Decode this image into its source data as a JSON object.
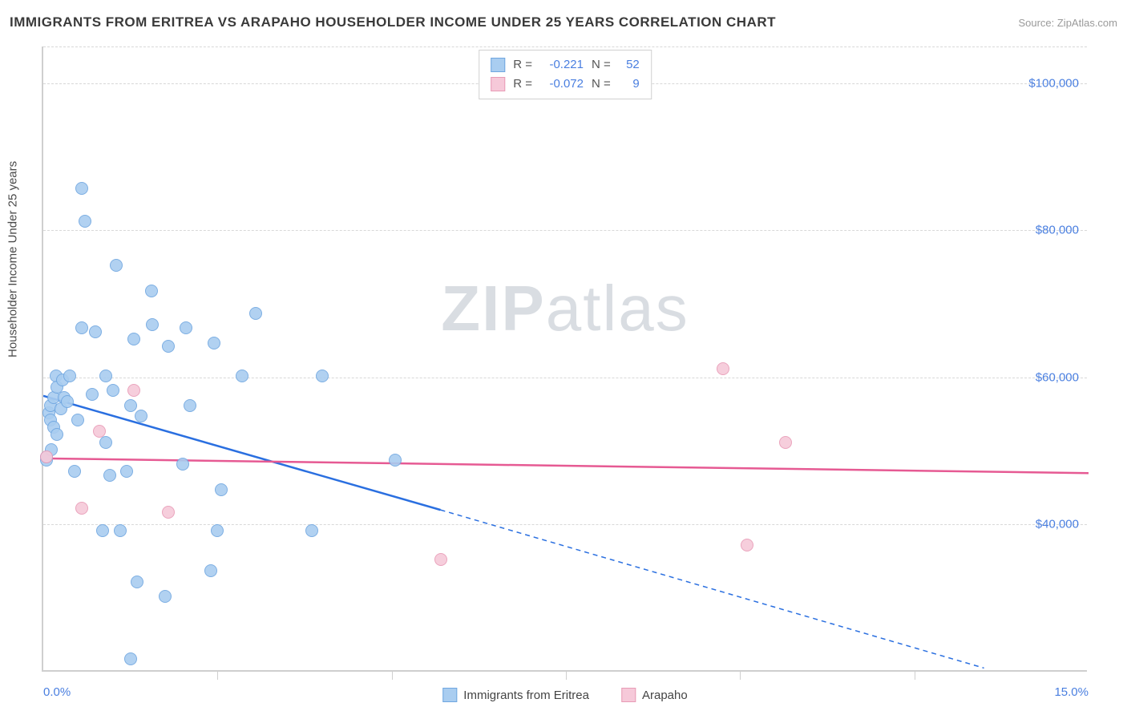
{
  "title": "IMMIGRANTS FROM ERITREA VS ARAPAHO HOUSEHOLDER INCOME UNDER 25 YEARS CORRELATION CHART",
  "source_label": "Source: ",
  "source_name": "ZipAtlas.com",
  "watermark_a": "ZIP",
  "watermark_b": "atlas",
  "y_axis_label": "Householder Income Under 25 years",
  "chart": {
    "type": "scatter",
    "background_color": "#ffffff",
    "grid_color": "#d8d8d8",
    "axis_color": "#cfcfcf",
    "tick_label_color": "#4a7fe0",
    "x": {
      "min": 0.0,
      "max": 15.0,
      "ticks": [
        0.0,
        15.0
      ],
      "tick_labels": [
        "0.0%",
        "15.0%"
      ],
      "minor_ticks": [
        2.5,
        5.0,
        7.5,
        10.0,
        12.5
      ]
    },
    "y": {
      "min": 20000,
      "max": 105000,
      "ticks": [
        40000,
        60000,
        80000,
        100000
      ],
      "tick_labels": [
        "$40,000",
        "$60,000",
        "$80,000",
        "$100,000"
      ]
    },
    "marker_radius": 8,
    "marker_stroke_width": 1.5,
    "marker_fill_opacity": 0.28
  },
  "series": [
    {
      "key": "eritrea",
      "label": "Immigrants from Eritrea",
      "color_stroke": "#6fa6e0",
      "color_fill": "#a9cdf0",
      "R_label": "R =",
      "R_value": "-0.221",
      "N_label": "N =",
      "N_value": "52",
      "trend": {
        "color": "#2a6fe0",
        "width": 2.5,
        "x1": 0.0,
        "y1": 57500,
        "x2": 5.7,
        "y2": 42000,
        "dash_to_x": 13.5,
        "dash_to_y": 20500
      },
      "points": [
        {
          "x": 0.05,
          "y": 48500
        },
        {
          "x": 0.05,
          "y": 49000
        },
        {
          "x": 0.08,
          "y": 55000
        },
        {
          "x": 0.1,
          "y": 54000
        },
        {
          "x": 0.1,
          "y": 56000
        },
        {
          "x": 0.12,
          "y": 50000
        },
        {
          "x": 0.15,
          "y": 53000
        },
        {
          "x": 0.15,
          "y": 57000
        },
        {
          "x": 0.18,
          "y": 60000
        },
        {
          "x": 0.2,
          "y": 52000
        },
        {
          "x": 0.2,
          "y": 58500
        },
        {
          "x": 0.25,
          "y": 55500
        },
        {
          "x": 0.28,
          "y": 59500
        },
        {
          "x": 0.3,
          "y": 57000
        },
        {
          "x": 0.35,
          "y": 56500
        },
        {
          "x": 0.38,
          "y": 60000
        },
        {
          "x": 0.45,
          "y": 47000
        },
        {
          "x": 0.5,
          "y": 54000
        },
        {
          "x": 0.55,
          "y": 66500
        },
        {
          "x": 0.55,
          "y": 85500
        },
        {
          "x": 0.6,
          "y": 81000
        },
        {
          "x": 0.7,
          "y": 57500
        },
        {
          "x": 0.75,
          "y": 66000
        },
        {
          "x": 0.85,
          "y": 39000
        },
        {
          "x": 0.9,
          "y": 51000
        },
        {
          "x": 0.9,
          "y": 60000
        },
        {
          "x": 0.95,
          "y": 46500
        },
        {
          "x": 1.0,
          "y": 58000
        },
        {
          "x": 1.05,
          "y": 75000
        },
        {
          "x": 1.1,
          "y": 39000
        },
        {
          "x": 1.2,
          "y": 47000
        },
        {
          "x": 1.25,
          "y": 21500
        },
        {
          "x": 1.25,
          "y": 56000
        },
        {
          "x": 1.3,
          "y": 65000
        },
        {
          "x": 1.35,
          "y": 32000
        },
        {
          "x": 1.4,
          "y": 54500
        },
        {
          "x": 1.55,
          "y": 71500
        },
        {
          "x": 1.57,
          "y": 67000
        },
        {
          "x": 1.75,
          "y": 30000
        },
        {
          "x": 1.8,
          "y": 64000
        },
        {
          "x": 2.0,
          "y": 48000
        },
        {
          "x": 2.05,
          "y": 66500
        },
        {
          "x": 2.1,
          "y": 56000
        },
        {
          "x": 2.4,
          "y": 33500
        },
        {
          "x": 2.45,
          "y": 64500
        },
        {
          "x": 2.5,
          "y": 39000
        },
        {
          "x": 2.55,
          "y": 44500
        },
        {
          "x": 2.85,
          "y": 60000
        },
        {
          "x": 3.05,
          "y": 68500
        },
        {
          "x": 3.85,
          "y": 39000
        },
        {
          "x": 4.0,
          "y": 60000
        },
        {
          "x": 5.05,
          "y": 48500
        }
      ]
    },
    {
      "key": "arapaho",
      "label": "Arapaho",
      "color_stroke": "#e89bb6",
      "color_fill": "#f6c9d9",
      "R_label": "R =",
      "R_value": "-0.072",
      "N_label": "N =",
      "N_value": "9",
      "trend": {
        "color": "#e65a93",
        "width": 2.5,
        "x1": 0.0,
        "y1": 49000,
        "x2": 15.0,
        "y2": 47000
      },
      "points": [
        {
          "x": 0.05,
          "y": 49000
        },
        {
          "x": 0.55,
          "y": 42000
        },
        {
          "x": 0.8,
          "y": 52500
        },
        {
          "x": 1.3,
          "y": 58000
        },
        {
          "x": 1.8,
          "y": 41500
        },
        {
          "x": 5.7,
          "y": 35000
        },
        {
          "x": 9.75,
          "y": 61000
        },
        {
          "x": 10.1,
          "y": 37000
        },
        {
          "x": 10.65,
          "y": 51000
        }
      ]
    }
  ]
}
